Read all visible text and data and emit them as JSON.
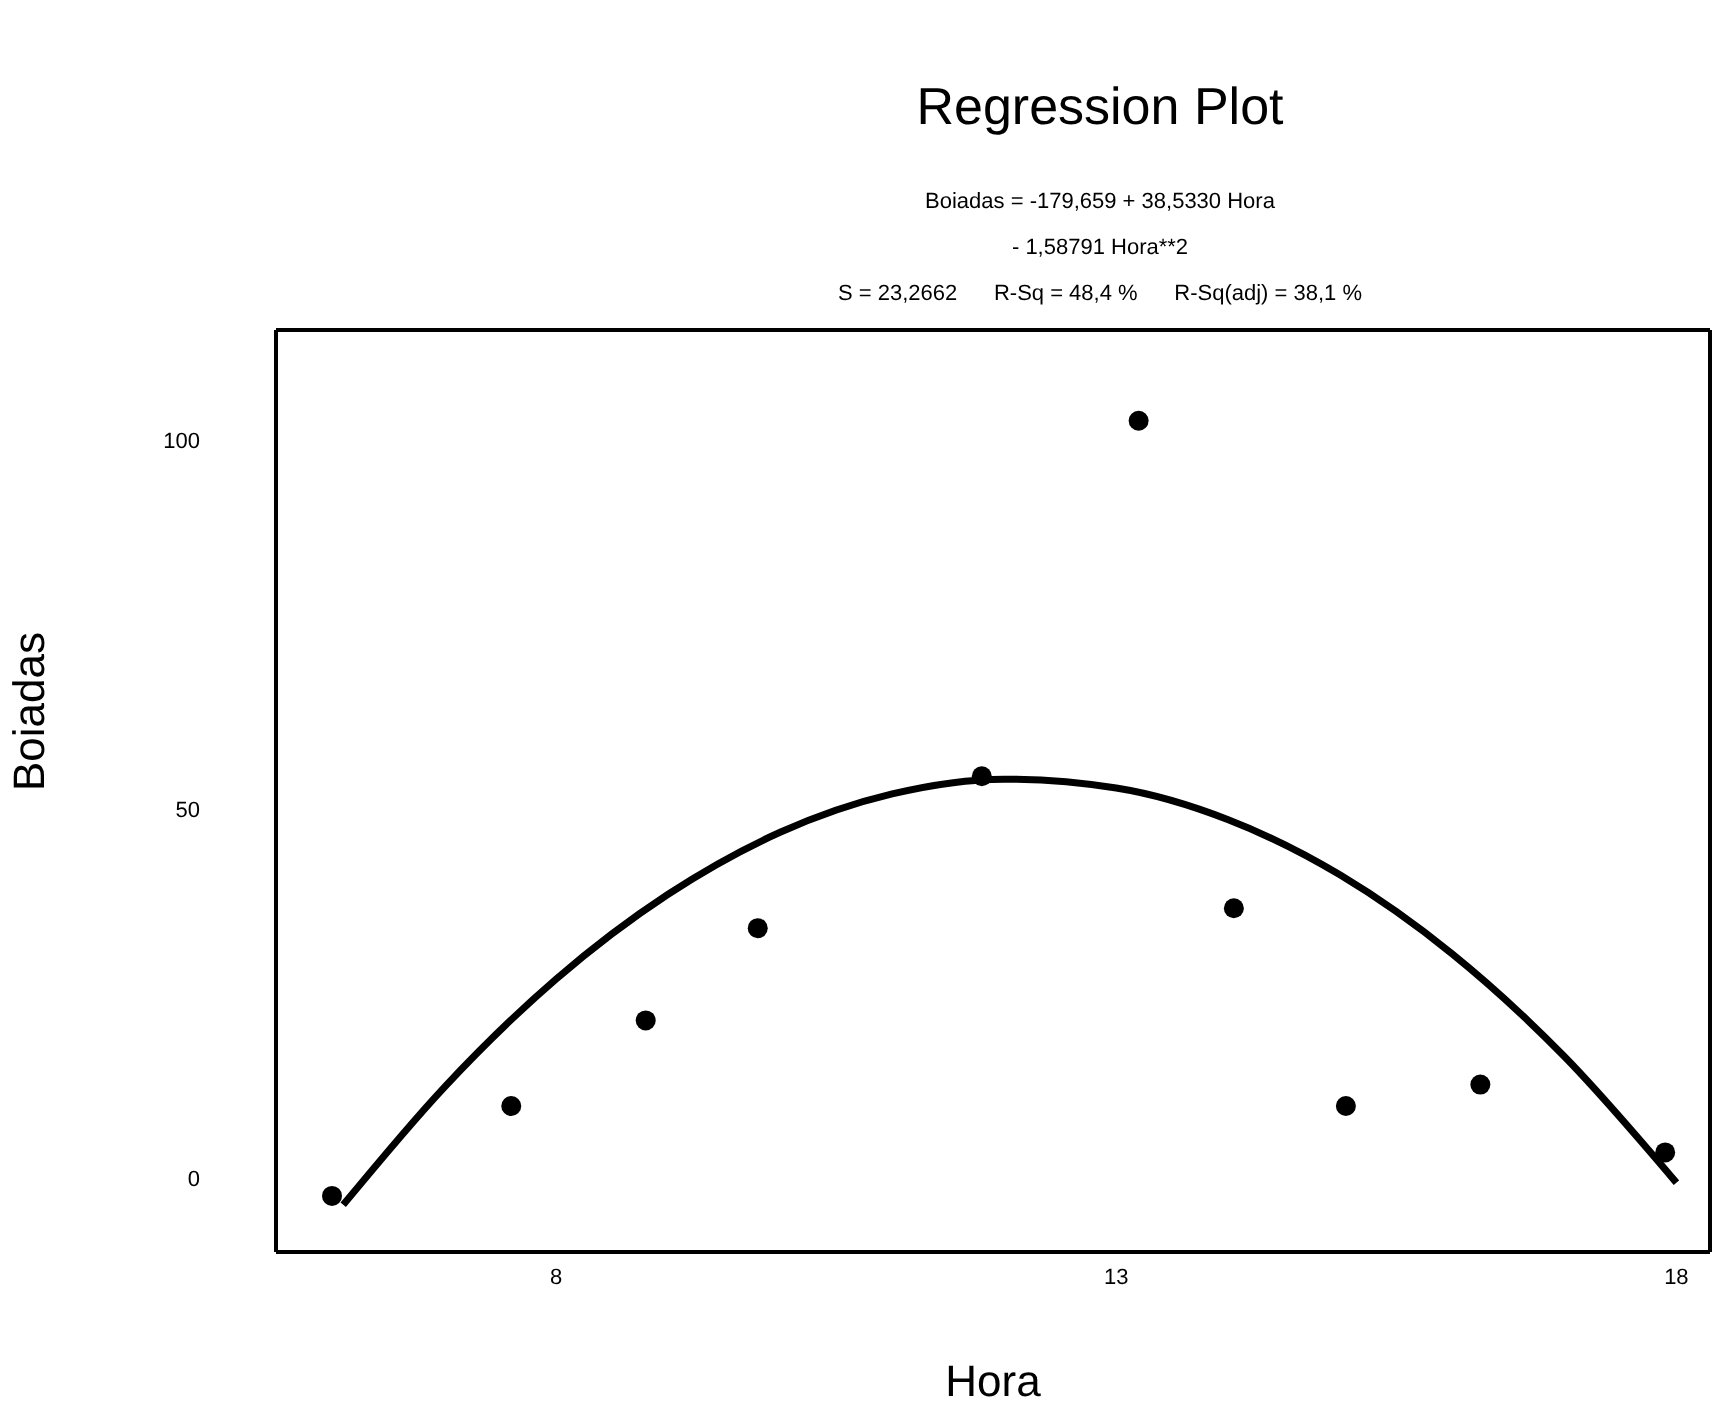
{
  "chart_data": {
    "type": "scatter",
    "title": "Regression Plot",
    "annotations": [
      "Boiadas = -179,659 + 38,5330 Hora",
      "- 1,58791 Hora**2",
      "S = 23,2662      R-Sq = 48,4 %      R-Sq(adj) = 38,1 %"
    ],
    "xlabel": "Hora",
    "ylabel": "Boiadas",
    "xlim": [
      5.5,
      18.3
    ],
    "xticks": [
      8,
      13,
      18
    ],
    "ylim": [
      -10,
      115
    ],
    "yticks": [
      0,
      50,
      100
    ],
    "marker": "circle",
    "series": [
      {
        "color": "#000000",
        "x": [
          6,
          7.6,
          8.8,
          9.8,
          11.8,
          13.2,
          14.05,
          15.05,
          16.25,
          17.9
        ],
        "values": [
          -2.4,
          9.8,
          21.4,
          33.9,
          54.5,
          102.7,
          36.6,
          9.8,
          12.7,
          3.5
        ]
      },
      {
        "type": "line",
        "color": "#000000",
        "line_style": "solid",
        "marker": "none",
        "x": [
          6.1,
          7,
          8,
          9,
          10,
          11,
          12,
          13,
          14,
          15,
          16,
          17,
          18
        ],
        "values": [
          -3.6,
          12.3,
          27.0,
          38.5,
          46.9,
          52.1,
          54.1,
          52.9,
          48.6,
          41.1,
          30.4,
          16.5,
          -0.6
        ]
      }
    ]
  }
}
